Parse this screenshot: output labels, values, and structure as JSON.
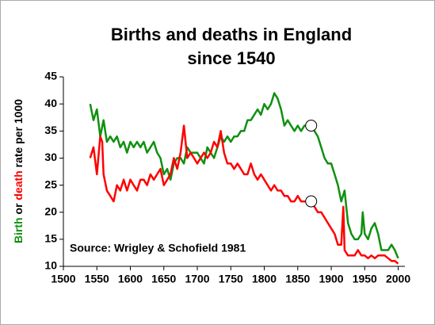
{
  "chart_data": {
    "type": "line",
    "title": [
      "Births and deaths in England",
      "since 1540"
    ],
    "ylabel": [
      {
        "text": "Birth",
        "color": "#109010"
      },
      {
        "text": " or ",
        "color": "#000000"
      },
      {
        "text": "death",
        "color": "#ff0000"
      },
      {
        "text": " rate per 1000",
        "color": "#000000"
      }
    ],
    "annotation": "Source: Wrigley & Schofield 1981",
    "xlim": [
      1500,
      2010
    ],
    "xticks": [
      1500,
      1550,
      1600,
      1650,
      1700,
      1750,
      1800,
      1850,
      1900,
      1950,
      2000
    ],
    "ylim": [
      10,
      45
    ],
    "yticks": [
      10,
      15,
      20,
      25,
      30,
      35,
      40,
      45
    ],
    "series": [
      {
        "name": "Birth",
        "color": "#109010",
        "x": [
          1540,
          1545,
          1550,
          1555,
          1560,
          1565,
          1570,
          1575,
          1580,
          1585,
          1590,
          1595,
          1600,
          1605,
          1610,
          1615,
          1620,
          1625,
          1630,
          1635,
          1640,
          1645,
          1650,
          1655,
          1660,
          1665,
          1670,
          1675,
          1680,
          1685,
          1690,
          1695,
          1700,
          1705,
          1710,
          1715,
          1720,
          1725,
          1730,
          1735,
          1740,
          1745,
          1750,
          1755,
          1760,
          1765,
          1770,
          1775,
          1780,
          1785,
          1790,
          1795,
          1800,
          1805,
          1810,
          1815,
          1820,
          1825,
          1830,
          1835,
          1840,
          1845,
          1850,
          1855,
          1860,
          1865,
          1870,
          1875,
          1880,
          1885,
          1890,
          1895,
          1900,
          1905,
          1910,
          1915,
          1920,
          1925,
          1930,
          1935,
          1940,
          1945,
          1947,
          1950,
          1955,
          1960,
          1965,
          1970,
          1975,
          1980,
          1985,
          1990,
          1995,
          2000
        ],
        "values": [
          40,
          37,
          39,
          34,
          37,
          33,
          34,
          33,
          34,
          32,
          33,
          31,
          33,
          32,
          33,
          32,
          33,
          31,
          32,
          33,
          31,
          30,
          27,
          28,
          26,
          29,
          30,
          30,
          29,
          32,
          31,
          31,
          31,
          30,
          29,
          32,
          31,
          30,
          32,
          34,
          33,
          34,
          33,
          34,
          34,
          35,
          35,
          37,
          37,
          38,
          39,
          38,
          40,
          39,
          40,
          42,
          41,
          39,
          36,
          37,
          36,
          35,
          36,
          35,
          36,
          36,
          36,
          35,
          34,
          32,
          30,
          29,
          29,
          27,
          25,
          22,
          24,
          18,
          16,
          15,
          15,
          16,
          20,
          16,
          15,
          17,
          18,
          16,
          13,
          13,
          13,
          14,
          13,
          11.5
        ]
      },
      {
        "name": "Death",
        "color": "#ff0000",
        "x": [
          1540,
          1545,
          1550,
          1555,
          1558,
          1560,
          1565,
          1570,
          1575,
          1580,
          1585,
          1590,
          1595,
          1600,
          1605,
          1610,
          1615,
          1620,
          1625,
          1630,
          1635,
          1640,
          1645,
          1650,
          1655,
          1660,
          1665,
          1670,
          1675,
          1680,
          1685,
          1690,
          1695,
          1700,
          1705,
          1710,
          1715,
          1720,
          1725,
          1730,
          1735,
          1740,
          1745,
          1750,
          1755,
          1760,
          1765,
          1770,
          1775,
          1780,
          1785,
          1790,
          1795,
          1800,
          1805,
          1810,
          1815,
          1820,
          1825,
          1830,
          1835,
          1840,
          1845,
          1850,
          1855,
          1860,
          1865,
          1870,
          1875,
          1880,
          1885,
          1890,
          1895,
          1900,
          1905,
          1910,
          1915,
          1918,
          1920,
          1925,
          1930,
          1935,
          1940,
          1945,
          1950,
          1955,
          1960,
          1965,
          1970,
          1975,
          1980,
          1985,
          1990,
          1995,
          2000
        ],
        "values": [
          30,
          32,
          27,
          34,
          33,
          27,
          24,
          23,
          22,
          25,
          24,
          26,
          24,
          26,
          25,
          24,
          26,
          26,
          25,
          27,
          26,
          27,
          28,
          25,
          26,
          27,
          30,
          28,
          31,
          36,
          30,
          31,
          30,
          29,
          30,
          31,
          30,
          31,
          33,
          32,
          35,
          31,
          29,
          29,
          28,
          29,
          28,
          27,
          27,
          29,
          27,
          26,
          27,
          26,
          25,
          24,
          25,
          24,
          24,
          23,
          23,
          22,
          22,
          23,
          22,
          22,
          22,
          22,
          21,
          20,
          20,
          19,
          18,
          17,
          16,
          14,
          14,
          21,
          13,
          12,
          12,
          12,
          13,
          12,
          12,
          11.5,
          12,
          11.5,
          12,
          12,
          12,
          11.5,
          11,
          11,
          10.5
        ]
      }
    ],
    "highlights": [
      {
        "x": 1870,
        "y": 36
      },
      {
        "x": 1870,
        "y": 22
      }
    ]
  }
}
